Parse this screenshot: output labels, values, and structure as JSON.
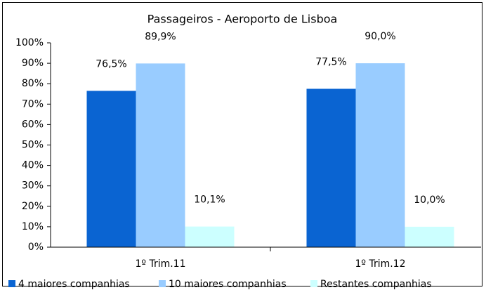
{
  "chart_data": {
    "type": "bar",
    "title": "Passageiros - Aeroporto de Lisboa",
    "categories": [
      "1º Trim.11",
      "1º Trim.12"
    ],
    "series": [
      {
        "name": "4 maiores companhias",
        "color": "#0a64d2",
        "values": [
          76.5,
          77.5
        ],
        "value_labels": [
          "76,5%",
          "77,5%"
        ]
      },
      {
        "name": "10 maiores companhias",
        "color": "#99ccff",
        "values": [
          89.9,
          90.0
        ],
        "value_labels": [
          "89,9%",
          "90,0%"
        ]
      },
      {
        "name": "Restantes companhias",
        "color": "#ccffff",
        "values": [
          10.1,
          10.0
        ],
        "value_labels": [
          "10,1%",
          "10,0%"
        ]
      }
    ],
    "ylim": [
      0,
      100
    ],
    "yticks": [
      {
        "value": 0,
        "label": "0%"
      },
      {
        "value": 10,
        "label": "10%"
      },
      {
        "value": 20,
        "label": "20%"
      },
      {
        "value": 30,
        "label": "30%"
      },
      {
        "value": 40,
        "label": "40%"
      },
      {
        "value": 50,
        "label": "50%"
      },
      {
        "value": 60,
        "label": "60%"
      },
      {
        "value": 70,
        "label": "70%"
      },
      {
        "value": 80,
        "label": "80%"
      },
      {
        "value": 90,
        "label": "90%"
      },
      {
        "value": 100,
        "label": "100%"
      }
    ],
    "legend": "bottom"
  }
}
